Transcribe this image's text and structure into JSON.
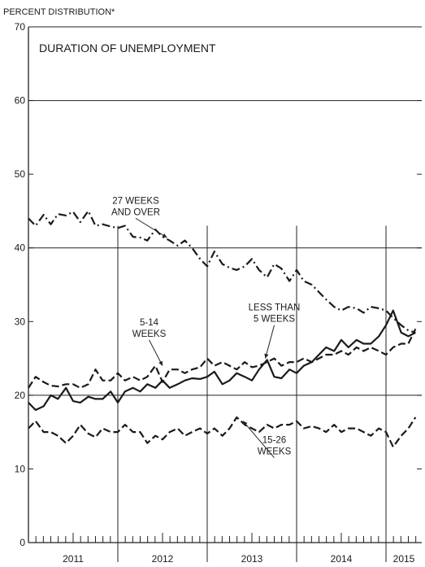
{
  "chart_data": {
    "type": "line",
    "ylabel": "PERCENT DISTRIBUTION*",
    "title": "DURATION OF UNEMPLOYMENT",
    "ylim": [
      0,
      70
    ],
    "yticks": [
      0,
      10,
      20,
      30,
      40,
      50,
      60,
      70
    ],
    "xlim": [
      2011.0,
      2015.4
    ],
    "year_labels": [
      {
        "label": "2011",
        "center": 2011.5
      },
      {
        "label": "2012",
        "center": 2012.5
      },
      {
        "label": "2013",
        "center": 2013.5
      },
      {
        "label": "2014",
        "center": 2014.5
      },
      {
        "label": "2015",
        "center": 2015.2
      }
    ],
    "grid": "horizontal at 20, 40, 60; vertical at each year",
    "series": [
      {
        "name": "27 WEEKS AND OVER",
        "style": "dash-dot",
        "points": [
          [
            2011.0,
            44.0
          ],
          [
            2011.08,
            43.0
          ],
          [
            2011.17,
            44.5
          ],
          [
            2011.25,
            43.2
          ],
          [
            2011.33,
            44.6
          ],
          [
            2011.42,
            44.4
          ],
          [
            2011.5,
            44.9
          ],
          [
            2011.58,
            43.5
          ],
          [
            2011.67,
            45.0
          ],
          [
            2011.75,
            43.0
          ],
          [
            2011.83,
            43.2
          ],
          [
            2011.92,
            42.9
          ],
          [
            2012.0,
            42.7
          ],
          [
            2012.08,
            43.0
          ],
          [
            2012.17,
            41.5
          ],
          [
            2012.25,
            41.4
          ],
          [
            2012.33,
            41.0
          ],
          [
            2012.42,
            42.5
          ],
          [
            2012.5,
            41.5
          ],
          [
            2012.58,
            41.0
          ],
          [
            2012.67,
            40.3
          ],
          [
            2012.75,
            41.0
          ],
          [
            2012.83,
            40.0
          ],
          [
            2012.92,
            38.5
          ],
          [
            2013.0,
            37.5
          ],
          [
            2013.08,
            39.5
          ],
          [
            2013.17,
            37.8
          ],
          [
            2013.25,
            37.3
          ],
          [
            2013.33,
            37.0
          ],
          [
            2013.42,
            37.5
          ],
          [
            2013.5,
            38.5
          ],
          [
            2013.58,
            37.0
          ],
          [
            2013.67,
            36.0
          ],
          [
            2013.75,
            37.8
          ],
          [
            2013.83,
            37.2
          ],
          [
            2013.92,
            35.5
          ],
          [
            2014.0,
            37.0
          ],
          [
            2014.08,
            35.5
          ],
          [
            2014.17,
            35.0
          ],
          [
            2014.25,
            34.0
          ],
          [
            2014.33,
            33.0
          ],
          [
            2014.42,
            32.0
          ],
          [
            2014.5,
            31.5
          ],
          [
            2014.58,
            32.0
          ],
          [
            2014.67,
            31.8
          ],
          [
            2014.75,
            31.2
          ],
          [
            2014.83,
            32.0
          ],
          [
            2014.92,
            31.8
          ],
          [
            2015.0,
            31.5
          ],
          [
            2015.08,
            30.5
          ],
          [
            2015.17,
            29.5
          ],
          [
            2015.25,
            28.8
          ],
          [
            2015.33,
            28.5
          ]
        ]
      },
      {
        "name": "5-14 WEEKS",
        "style": "dashed",
        "points": [
          [
            2011.0,
            21.0
          ],
          [
            2011.08,
            22.5
          ],
          [
            2011.17,
            21.8
          ],
          [
            2011.25,
            21.3
          ],
          [
            2011.33,
            21.2
          ],
          [
            2011.42,
            21.5
          ],
          [
            2011.5,
            21.5
          ],
          [
            2011.58,
            21.0
          ],
          [
            2011.67,
            21.5
          ],
          [
            2011.75,
            23.5
          ],
          [
            2011.83,
            22.0
          ],
          [
            2011.92,
            22.0
          ],
          [
            2012.0,
            23.0
          ],
          [
            2012.08,
            22.0
          ],
          [
            2012.17,
            22.5
          ],
          [
            2012.25,
            22.0
          ],
          [
            2012.33,
            22.5
          ],
          [
            2012.42,
            24.0
          ],
          [
            2012.5,
            21.8
          ],
          [
            2012.58,
            23.5
          ],
          [
            2012.67,
            23.5
          ],
          [
            2012.75,
            23.0
          ],
          [
            2012.83,
            23.5
          ],
          [
            2012.92,
            23.8
          ],
          [
            2013.0,
            25.0
          ],
          [
            2013.08,
            24.0
          ],
          [
            2013.17,
            24.5
          ],
          [
            2013.25,
            24.0
          ],
          [
            2013.33,
            23.5
          ],
          [
            2013.42,
            24.5
          ],
          [
            2013.5,
            23.8
          ],
          [
            2013.58,
            24.0
          ],
          [
            2013.67,
            24.5
          ],
          [
            2013.75,
            25.0
          ],
          [
            2013.83,
            24.0
          ],
          [
            2013.92,
            24.5
          ],
          [
            2014.0,
            24.5
          ],
          [
            2014.08,
            25.0
          ],
          [
            2014.17,
            24.5
          ],
          [
            2014.25,
            25.0
          ],
          [
            2014.33,
            25.5
          ],
          [
            2014.42,
            25.5
          ],
          [
            2014.5,
            26.0
          ],
          [
            2014.58,
            25.5
          ],
          [
            2014.67,
            26.5
          ],
          [
            2014.75,
            26.0
          ],
          [
            2014.83,
            26.5
          ],
          [
            2014.92,
            26.0
          ],
          [
            2015.0,
            25.5
          ],
          [
            2015.08,
            26.5
          ],
          [
            2015.17,
            27.0
          ],
          [
            2015.25,
            27.0
          ],
          [
            2015.33,
            29.0
          ]
        ]
      },
      {
        "name": "LESS THAN 5 WEEKS",
        "style": "solid",
        "points": [
          [
            2011.0,
            19.0
          ],
          [
            2011.08,
            18.0
          ],
          [
            2011.17,
            18.5
          ],
          [
            2011.25,
            20.0
          ],
          [
            2011.33,
            19.5
          ],
          [
            2011.42,
            21.0
          ],
          [
            2011.5,
            19.2
          ],
          [
            2011.58,
            19.0
          ],
          [
            2011.67,
            19.8
          ],
          [
            2011.75,
            19.5
          ],
          [
            2011.83,
            19.5
          ],
          [
            2011.92,
            20.5
          ],
          [
            2012.0,
            19.0
          ],
          [
            2012.08,
            20.5
          ],
          [
            2012.17,
            21.0
          ],
          [
            2012.25,
            20.5
          ],
          [
            2012.33,
            21.5
          ],
          [
            2012.42,
            21.0
          ],
          [
            2012.5,
            22.0
          ],
          [
            2012.58,
            21.0
          ],
          [
            2012.67,
            21.5
          ],
          [
            2012.75,
            22.0
          ],
          [
            2012.83,
            22.3
          ],
          [
            2012.92,
            22.2
          ],
          [
            2013.0,
            22.5
          ],
          [
            2013.08,
            23.2
          ],
          [
            2013.17,
            21.5
          ],
          [
            2013.25,
            22.0
          ],
          [
            2013.33,
            23.0
          ],
          [
            2013.42,
            22.5
          ],
          [
            2013.5,
            22.0
          ],
          [
            2013.58,
            23.5
          ],
          [
            2013.67,
            24.8
          ],
          [
            2013.75,
            22.5
          ],
          [
            2013.83,
            22.3
          ],
          [
            2013.92,
            23.5
          ],
          [
            2014.0,
            23.0
          ],
          [
            2014.08,
            24.0
          ],
          [
            2014.17,
            24.5
          ],
          [
            2014.25,
            25.5
          ],
          [
            2014.33,
            26.5
          ],
          [
            2014.42,
            26.0
          ],
          [
            2014.5,
            27.5
          ],
          [
            2014.58,
            26.5
          ],
          [
            2014.67,
            27.5
          ],
          [
            2014.75,
            27.0
          ],
          [
            2014.83,
            27.0
          ],
          [
            2014.92,
            28.0
          ],
          [
            2015.0,
            29.5
          ],
          [
            2015.08,
            31.5
          ],
          [
            2015.17,
            28.5
          ],
          [
            2015.25,
            28.0
          ],
          [
            2015.33,
            28.5
          ]
        ]
      },
      {
        "name": "15-26 WEEKS",
        "style": "dashed",
        "points": [
          [
            2011.0,
            15.5
          ],
          [
            2011.08,
            16.5
          ],
          [
            2011.17,
            15.0
          ],
          [
            2011.25,
            15.0
          ],
          [
            2011.33,
            14.5
          ],
          [
            2011.42,
            13.5
          ],
          [
            2011.5,
            14.5
          ],
          [
            2011.58,
            16.0
          ],
          [
            2011.67,
            14.8
          ],
          [
            2011.75,
            14.3
          ],
          [
            2011.83,
            15.5
          ],
          [
            2011.92,
            15.0
          ],
          [
            2012.0,
            15.0
          ],
          [
            2012.08,
            16.0
          ],
          [
            2012.17,
            15.0
          ],
          [
            2012.25,
            15.0
          ],
          [
            2012.33,
            13.5
          ],
          [
            2012.42,
            14.5
          ],
          [
            2012.5,
            14.0
          ],
          [
            2012.58,
            15.0
          ],
          [
            2012.67,
            15.5
          ],
          [
            2012.75,
            14.5
          ],
          [
            2012.83,
            15.0
          ],
          [
            2012.92,
            15.5
          ],
          [
            2013.0,
            14.8
          ],
          [
            2013.08,
            15.5
          ],
          [
            2013.17,
            14.5
          ],
          [
            2013.25,
            15.5
          ],
          [
            2013.33,
            17.0
          ],
          [
            2013.42,
            16.0
          ],
          [
            2013.5,
            15.5
          ],
          [
            2013.58,
            15.0
          ],
          [
            2013.67,
            16.0
          ],
          [
            2013.75,
            15.5
          ],
          [
            2013.83,
            16.0
          ],
          [
            2013.92,
            16.0
          ],
          [
            2014.0,
            16.5
          ],
          [
            2014.08,
            15.5
          ],
          [
            2014.17,
            15.8
          ],
          [
            2014.25,
            15.5
          ],
          [
            2014.33,
            15.0
          ],
          [
            2014.42,
            16.0
          ],
          [
            2014.5,
            15.0
          ],
          [
            2014.58,
            15.5
          ],
          [
            2014.67,
            15.5
          ],
          [
            2014.75,
            15.0
          ],
          [
            2014.83,
            14.5
          ],
          [
            2014.92,
            15.5
          ],
          [
            2015.0,
            15.0
          ],
          [
            2015.08,
            13.0
          ],
          [
            2015.17,
            14.5
          ],
          [
            2015.25,
            15.5
          ],
          [
            2015.33,
            17.0
          ]
        ]
      }
    ],
    "annotations": [
      {
        "lines": [
          "27 WEEKS",
          "AND OVER"
        ],
        "x": 2012.2,
        "y": 46.0,
        "arrow_to": [
          2012.55,
          41.4
        ]
      },
      {
        "lines": [
          "5-14",
          "WEEKS"
        ],
        "x": 2012.35,
        "y": 29.5,
        "arrow_to": [
          2012.5,
          24.0
        ]
      },
      {
        "lines": [
          "LESS THAN",
          "5 WEEKS"
        ],
        "x": 2013.75,
        "y": 31.5,
        "arrow_to": [
          2013.65,
          25.0
        ]
      },
      {
        "lines": [
          "15-26",
          "WEEKS"
        ],
        "x": 2013.75,
        "y": 13.5,
        "arrow_to": [
          2013.4,
          16.5
        ]
      }
    ]
  }
}
